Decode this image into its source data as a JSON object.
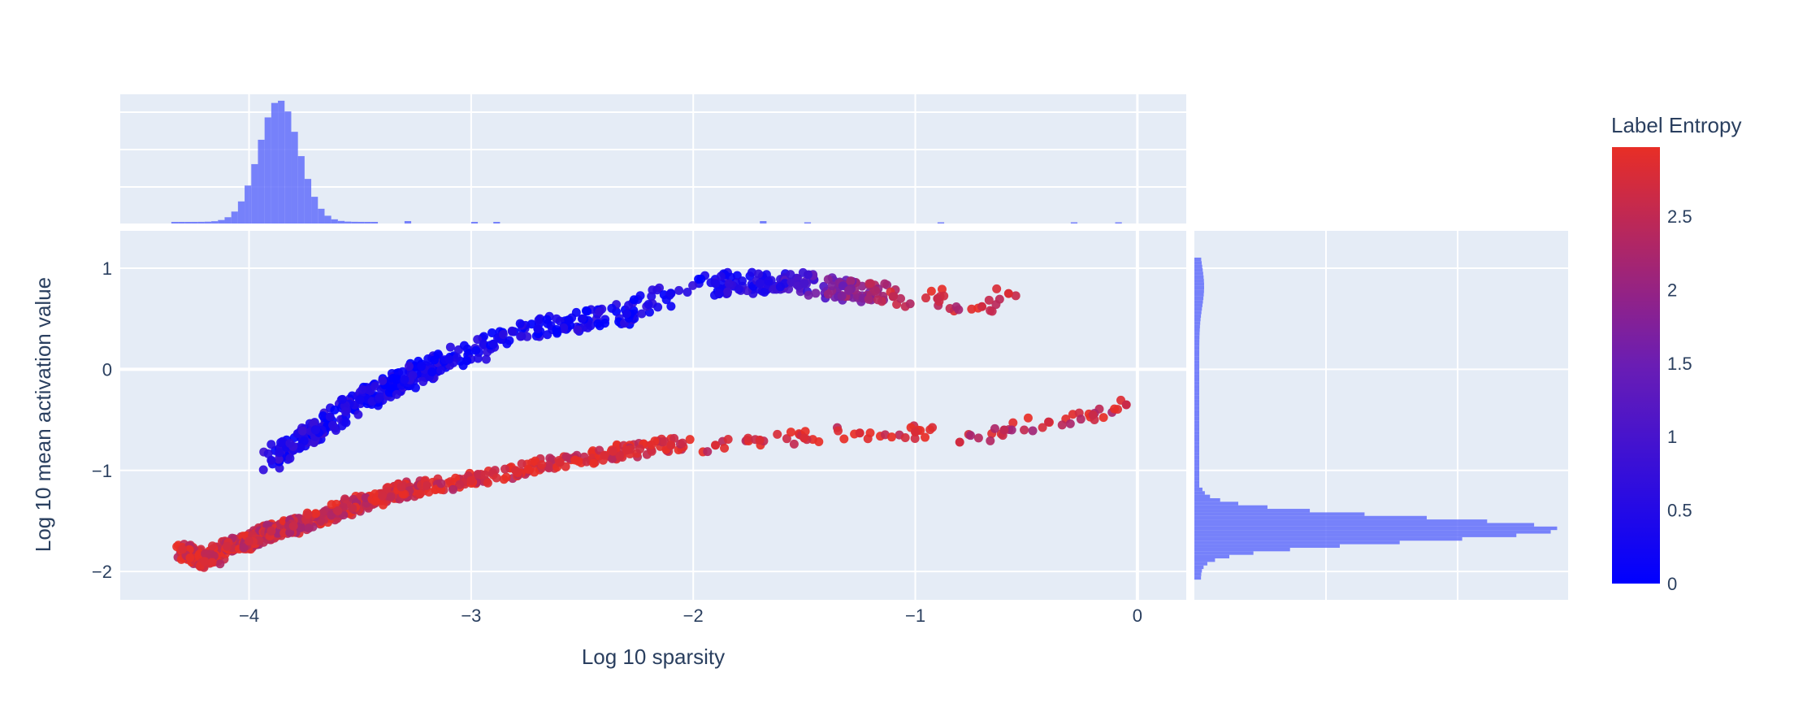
{
  "chart_data": {
    "type": "scatter",
    "xlabel": "Log 10 sparsity",
    "ylabel": "Log 10 mean activation value",
    "xlim": [
      -4.58,
      0.22
    ],
    "ylim": [
      -2.28,
      1.37
    ],
    "x_ticks": [
      -4,
      -3,
      -2,
      -1,
      0
    ],
    "y_ticks": [
      -2,
      -1,
      0,
      1
    ],
    "x_tick_labels": [
      "−4",
      "−3",
      "−2",
      "−1",
      "0"
    ],
    "y_tick_labels": [
      "−2",
      "−1",
      "0",
      "1"
    ],
    "grid": true,
    "marginal_x": "histogram",
    "marginal_y": "histogram",
    "histogram_color": "#636efa",
    "colorbar": {
      "title": "Label Entropy",
      "range": [
        0,
        2.97
      ],
      "ticks": [
        0,
        0.5,
        1,
        1.5,
        2,
        2.5
      ],
      "tick_labels": [
        "0",
        "0.5",
        "1",
        "1.5",
        "2",
        "2.5"
      ],
      "color_low": "#0000ff",
      "color_high": "#e82e26"
    },
    "series": [
      {
        "cluster": "low-sparsity-red-band",
        "note_points": [
          {
            "x": -4.3,
            "y": -1.78,
            "c": 2.8
          },
          {
            "x": -4.2,
            "y": -1.9,
            "c": 2.8
          },
          {
            "x": -4.1,
            "y": -1.75,
            "c": 2.7
          },
          {
            "x": -4.0,
            "y": -1.7,
            "c": 2.7
          },
          {
            "x": -3.9,
            "y": -1.6,
            "c": 2.6
          },
          {
            "x": -3.8,
            "y": -1.55,
            "c": 2.6
          },
          {
            "x": -3.6,
            "y": -1.4,
            "c": 2.6
          },
          {
            "x": -3.4,
            "y": -1.25,
            "c": 2.7
          },
          {
            "x": -3.2,
            "y": -1.15,
            "c": 2.7
          },
          {
            "x": -3.0,
            "y": -1.1,
            "c": 2.8
          },
          {
            "x": -2.8,
            "y": -1.0,
            "c": 2.8
          },
          {
            "x": -2.6,
            "y": -0.92,
            "c": 2.8
          },
          {
            "x": -2.4,
            "y": -0.85,
            "c": 2.8
          },
          {
            "x": -2.3,
            "y": -0.8,
            "c": 2.8
          },
          {
            "x": -2.1,
            "y": -0.75,
            "c": 2.8
          },
          {
            "x": -1.9,
            "y": -0.75,
            "c": 2.8
          },
          {
            "x": -1.7,
            "y": -0.7,
            "c": 2.8
          },
          {
            "x": -1.5,
            "y": -0.68,
            "c": 2.8
          },
          {
            "x": -1.25,
            "y": -0.63,
            "c": 2.8
          },
          {
            "x": -1.0,
            "y": -0.62,
            "c": 2.8
          },
          {
            "x": -0.8,
            "y": -0.72,
            "c": 2.7
          },
          {
            "x": -0.6,
            "y": -0.6,
            "c": 2.5
          },
          {
            "x": -0.4,
            "y": -0.52,
            "c": 2.7
          },
          {
            "x": -0.2,
            "y": -0.45,
            "c": 2.6
          },
          {
            "x": -0.05,
            "y": -0.35,
            "c": 2.6
          }
        ]
      },
      {
        "cluster": "upper-blue-arc",
        "note_points": [
          {
            "x": -3.9,
            "y": -0.9,
            "c": 0.5
          },
          {
            "x": -3.7,
            "y": -0.6,
            "c": 0.4
          },
          {
            "x": -3.5,
            "y": -0.3,
            "c": 0.3
          },
          {
            "x": -3.3,
            "y": -0.1,
            "c": 0.3
          },
          {
            "x": -3.1,
            "y": 0.1,
            "c": 0.3
          },
          {
            "x": -2.9,
            "y": 0.25,
            "c": 0.3
          },
          {
            "x": -2.7,
            "y": 0.4,
            "c": 0.3
          },
          {
            "x": -2.5,
            "y": 0.5,
            "c": 0.3
          },
          {
            "x": -2.3,
            "y": 0.55,
            "c": 0.3
          },
          {
            "x": -2.1,
            "y": 0.75,
            "c": 0.3
          },
          {
            "x": -1.9,
            "y": 0.85,
            "c": 0.4
          },
          {
            "x": -1.7,
            "y": 0.85,
            "c": 0.5
          },
          {
            "x": -1.5,
            "y": 0.85,
            "c": 1.0
          },
          {
            "x": -1.3,
            "y": 0.78,
            "c": 1.8
          },
          {
            "x": -1.1,
            "y": 0.72,
            "c": 2.5
          },
          {
            "x": -0.9,
            "y": 0.7,
            "c": 2.6
          },
          {
            "x": -0.7,
            "y": 0.62,
            "c": 2.7
          },
          {
            "x": -0.58,
            "y": 0.75,
            "c": 2.8
          }
        ]
      }
    ]
  }
}
